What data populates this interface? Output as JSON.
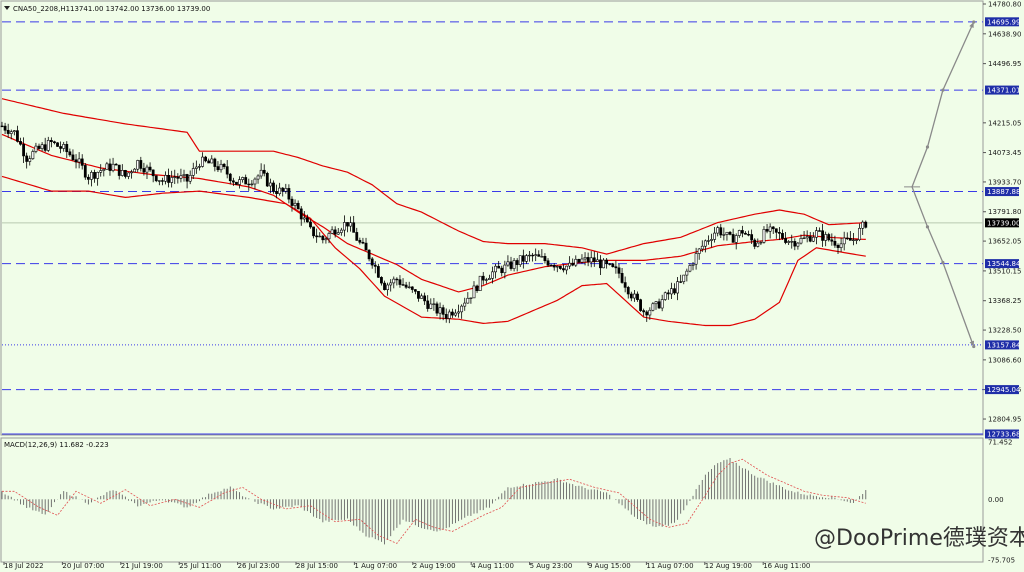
{
  "window": {
    "symbol_label": "CNA50_2208,H1",
    "ohlc_label": "13741.00 13742.00 13736.00 13739.00",
    "indicator_label": "MACD(12,26,9) 11.682 -0.223",
    "watermark": "@DooPrime德璞资本"
  },
  "colors": {
    "background": "#f0fde8",
    "bollinger": "#e00000",
    "level_line": "#3a3ae8",
    "axis_text": "#1a1a1a",
    "candle": "#000000",
    "histogram": "#666666",
    "signal_line": "#e05050",
    "projection": "#8a8a8a",
    "price_box": "#000000",
    "level_box": "#1f2ea8"
  },
  "chart_data": {
    "type": "candlestick",
    "ylim": [
      12733.68,
      14780.8
    ],
    "yticks": [
      14780.8,
      14638.9,
      14496.95,
      14215.05,
      14073.45,
      13933.7,
      13791.8,
      13652.05,
      13510.15,
      13368.25,
      13228.5,
      13086.6,
      12945.05,
      12804.95
    ],
    "xticks": [
      "18 Jul 2022",
      "20 Jul 07:00",
      "21 Jul 19:00",
      "25 Jul 11:00",
      "26 Jul 23:00",
      "28 Jul 15:00",
      "1 Aug 07:00",
      "2 Aug 19:00",
      "4 Aug 11:00",
      "5 Aug 23:00",
      "9 Aug 15:00",
      "11 Aug 07:00",
      "12 Aug 19:00",
      "16 Aug 11:00"
    ],
    "current_price": 13739.0,
    "levels": [
      {
        "value": 14695.99,
        "style": "dashed"
      },
      {
        "value": 14371.01,
        "style": "dashed"
      },
      {
        "value": 13887.88,
        "style": "dashed"
      },
      {
        "value": 13544.84,
        "style": "dashed"
      },
      {
        "value": 13157.84,
        "style": "dotted"
      },
      {
        "value": 12945.04,
        "style": "dashed"
      },
      {
        "value": 12733.68,
        "style": "solid"
      }
    ],
    "close_points": [
      [
        0,
        14200
      ],
      [
        4,
        14170
      ],
      [
        8,
        14050
      ],
      [
        12,
        14090
      ],
      [
        16,
        14120
      ],
      [
        20,
        14090
      ],
      [
        24,
        14040
      ],
      [
        28,
        13960
      ],
      [
        32,
        13990
      ],
      [
        36,
        14010
      ],
      [
        40,
        13960
      ],
      [
        44,
        14030
      ],
      [
        48,
        13980
      ],
      [
        52,
        13940
      ],
      [
        56,
        13960
      ],
      [
        60,
        13940
      ],
      [
        64,
        14030
      ],
      [
        68,
        14020
      ],
      [
        72,
        13990
      ],
      [
        76,
        13930
      ],
      [
        80,
        13940
      ],
      [
        84,
        13970
      ],
      [
        88,
        13900
      ],
      [
        92,
        13880
      ],
      [
        96,
        13800
      ],
      [
        100,
        13700
      ],
      [
        104,
        13660
      ],
      [
        108,
        13710
      ],
      [
        112,
        13740
      ],
      [
        116,
        13640
      ],
      [
        120,
        13560
      ],
      [
        124,
        13440
      ],
      [
        128,
        13470
      ],
      [
        132,
        13420
      ],
      [
        136,
        13380
      ],
      [
        140,
        13330
      ],
      [
        144,
        13300
      ],
      [
        148,
        13340
      ],
      [
        152,
        13400
      ],
      [
        156,
        13480
      ],
      [
        160,
        13510
      ],
      [
        164,
        13530
      ],
      [
        168,
        13560
      ],
      [
        172,
        13580
      ],
      [
        176,
        13560
      ],
      [
        180,
        13540
      ],
      [
        184,
        13530
      ],
      [
        188,
        13560
      ],
      [
        192,
        13560
      ],
      [
        196,
        13530
      ],
      [
        200,
        13500
      ],
      [
        204,
        13400
      ],
      [
        208,
        13320
      ],
      [
        212,
        13340
      ],
      [
        216,
        13400
      ],
      [
        220,
        13450
      ],
      [
        224,
        13560
      ],
      [
        228,
        13650
      ],
      [
        232,
        13710
      ],
      [
        236,
        13660
      ],
      [
        240,
        13700
      ],
      [
        244,
        13640
      ],
      [
        248,
        13700
      ],
      [
        252,
        13680
      ],
      [
        256,
        13650
      ],
      [
        260,
        13660
      ],
      [
        264,
        13690
      ],
      [
        268,
        13660
      ],
      [
        272,
        13640
      ],
      [
        276,
        13660
      ],
      [
        280,
        13739
      ]
    ],
    "bollinger": {
      "upper": [
        [
          0,
          14330
        ],
        [
          20,
          14260
        ],
        [
          40,
          14210
        ],
        [
          60,
          14170
        ],
        [
          64,
          14080
        ],
        [
          76,
          14080
        ],
        [
          88,
          14080
        ],
        [
          96,
          14050
        ],
        [
          104,
          14010
        ],
        [
          112,
          13980
        ],
        [
          120,
          13920
        ],
        [
          128,
          13830
        ],
        [
          136,
          13790
        ],
        [
          148,
          13700
        ],
        [
          156,
          13650
        ],
        [
          164,
          13640
        ],
        [
          176,
          13640
        ],
        [
          188,
          13620
        ],
        [
          196,
          13590
        ],
        [
          208,
          13640
        ],
        [
          220,
          13670
        ],
        [
          232,
          13740
        ],
        [
          244,
          13780
        ],
        [
          252,
          13800
        ],
        [
          260,
          13780
        ],
        [
          268,
          13730
        ],
        [
          280,
          13740
        ]
      ],
      "middle": [
        [
          0,
          14160
        ],
        [
          16,
          14060
        ],
        [
          32,
          14000
        ],
        [
          48,
          13970
        ],
        [
          64,
          13950
        ],
        [
          80,
          13910
        ],
        [
          88,
          13870
        ],
        [
          96,
          13790
        ],
        [
          104,
          13720
        ],
        [
          112,
          13640
        ],
        [
          120,
          13590
        ],
        [
          128,
          13540
        ],
        [
          136,
          13470
        ],
        [
          148,
          13410
        ],
        [
          156,
          13440
        ],
        [
          164,
          13490
        ],
        [
          176,
          13530
        ],
        [
          188,
          13550
        ],
        [
          196,
          13560
        ],
        [
          208,
          13560
        ],
        [
          220,
          13580
        ],
        [
          232,
          13630
        ],
        [
          244,
          13650
        ],
        [
          252,
          13660
        ],
        [
          260,
          13680
        ],
        [
          268,
          13670
        ],
        [
          280,
          13660
        ]
      ],
      "lower": [
        [
          0,
          13960
        ],
        [
          16,
          13890
        ],
        [
          28,
          13890
        ],
        [
          40,
          13860
        ],
        [
          52,
          13880
        ],
        [
          64,
          13890
        ],
        [
          80,
          13860
        ],
        [
          92,
          13830
        ],
        [
          100,
          13760
        ],
        [
          108,
          13620
        ],
        [
          116,
          13520
        ],
        [
          124,
          13390
        ],
        [
          136,
          13290
        ],
        [
          148,
          13280
        ],
        [
          156,
          13260
        ],
        [
          164,
          13270
        ],
        [
          172,
          13320
        ],
        [
          180,
          13370
        ],
        [
          188,
          13440
        ],
        [
          196,
          13450
        ],
        [
          208,
          13290
        ],
        [
          216,
          13270
        ],
        [
          228,
          13250
        ],
        [
          236,
          13250
        ],
        [
          244,
          13280
        ],
        [
          252,
          13360
        ],
        [
          258,
          13560
        ],
        [
          264,
          13620
        ],
        [
          280,
          13580
        ]
      ]
    },
    "projection": {
      "origin": [
        295,
        13910
      ],
      "up": [
        [
          300,
          14100
        ],
        [
          305,
          14371
        ],
        [
          315,
          14695
        ]
      ],
      "down": [
        [
          300,
          13720
        ],
        [
          305,
          13550
        ],
        [
          315,
          13150
        ]
      ]
    },
    "macd": {
      "label": "MACD(12,26,9) 11.682 -0.223",
      "yticks": [
        71.452,
        0.0,
        -75.705
      ],
      "ylim": [
        -75.705,
        71.452
      ],
      "histogram_points": [
        [
          0,
          10
        ],
        [
          8,
          -10
        ],
        [
          14,
          -20
        ],
        [
          20,
          10
        ],
        [
          28,
          -5
        ],
        [
          36,
          12
        ],
        [
          44,
          -8
        ],
        [
          52,
          0
        ],
        [
          60,
          -10
        ],
        [
          68,
          8
        ],
        [
          74,
          15
        ],
        [
          80,
          0
        ],
        [
          88,
          -12
        ],
        [
          96,
          -8
        ],
        [
          104,
          -28
        ],
        [
          112,
          -25
        ],
        [
          118,
          -45
        ],
        [
          124,
          -55
        ],
        [
          130,
          -25
        ],
        [
          136,
          -35
        ],
        [
          142,
          -40
        ],
        [
          148,
          -28
        ],
        [
          152,
          -20
        ],
        [
          158,
          -10
        ],
        [
          164,
          15
        ],
        [
          172,
          20
        ],
        [
          180,
          25
        ],
        [
          188,
          15
        ],
        [
          196,
          8
        ],
        [
          200,
          -5
        ],
        [
          206,
          -25
        ],
        [
          212,
          -35
        ],
        [
          218,
          -30
        ],
        [
          224,
          5
        ],
        [
          228,
          30
        ],
        [
          232,
          45
        ],
        [
          236,
          50
        ],
        [
          240,
          40
        ],
        [
          244,
          30
        ],
        [
          250,
          20
        ],
        [
          256,
          10
        ],
        [
          262,
          5
        ],
        [
          270,
          2
        ],
        [
          276,
          -5
        ],
        [
          280,
          12
        ]
      ]
    }
  }
}
